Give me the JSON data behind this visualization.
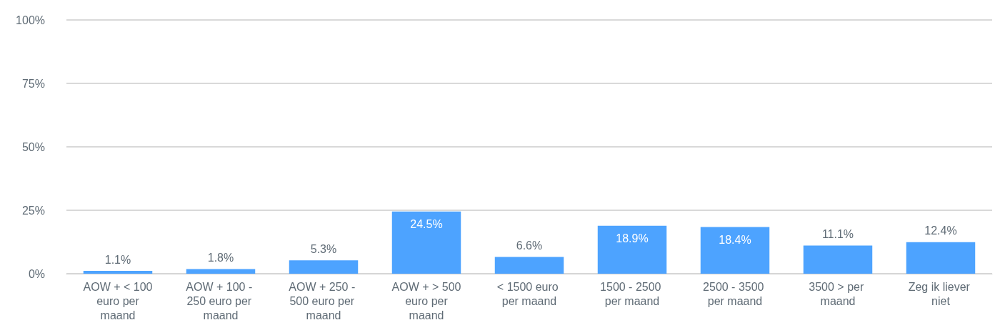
{
  "chart_data": {
    "type": "bar",
    "categories": [
      "AOW + < 100 euro per maand",
      "AOW + 100 - 250 euro per maand",
      "AOW + 250 - 500 euro per maand",
      "AOW + > 500 euro per maand",
      "< 1500 euro per maand",
      "1500 - 2500 per maand",
      "2500 - 3500 per maand",
      "3500 > per maand",
      "Zeg ik liever niet"
    ],
    "values": [
      1.1,
      1.8,
      5.3,
      24.5,
      6.6,
      18.9,
      18.4,
      11.1,
      12.4
    ],
    "value_labels": [
      "1.1%",
      "1.8%",
      "5.3%",
      "24.5%",
      "6.6%",
      "18.9%",
      "18.4%",
      "11.1%",
      "12.4%"
    ],
    "color": "#4da3ff",
    "ylim": [
      0,
      100
    ],
    "yticks": [
      {
        "value": 0,
        "label": "0%"
      },
      {
        "value": 25,
        "label": "25%"
      },
      {
        "value": 50,
        "label": "50%"
      },
      {
        "value": 75,
        "label": "75%"
      },
      {
        "value": 100,
        "label": "100%"
      }
    ],
    "grid": "y"
  }
}
